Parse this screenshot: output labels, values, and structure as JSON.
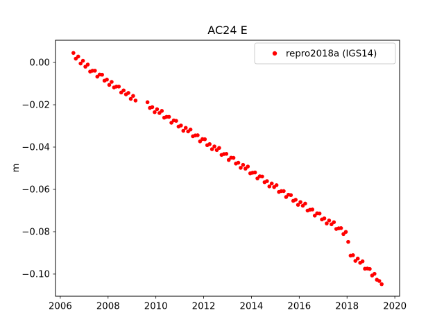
{
  "figure": {
    "background": "#ffffff"
  },
  "chart_data": {
    "type": "scatter",
    "title": "AC24 E",
    "xlabel": "",
    "ylabel": "m",
    "grid": false,
    "xlim": [
      2005.8,
      2020.2
    ],
    "ylim": [
      -0.1105,
      0.0105
    ],
    "xticks": [
      2006,
      2008,
      2010,
      2012,
      2014,
      2016,
      2018,
      2020
    ],
    "yticks": [
      0.0,
      -0.02,
      -0.04,
      -0.06,
      -0.08,
      -0.1
    ],
    "ytick_labels": [
      "0.00",
      "−0.02",
      "−0.04",
      "−0.06",
      "−0.08",
      "−0.10"
    ],
    "legend": {
      "position": "upper right",
      "entries": [
        {
          "label": "repro2018a (IGS14)",
          "color": "#ff0000",
          "marker": "circle"
        }
      ]
    },
    "series": [
      {
        "name": "repro2018a (IGS14)",
        "color": "#ff0000",
        "marker": "dot",
        "marker_size": 2.8,
        "x": [
          2006.55,
          2006.65,
          2006.75,
          2006.85,
          2006.95,
          2007.05,
          2007.15,
          2007.25,
          2007.35,
          2007.45,
          2007.55,
          2007.65,
          2007.75,
          2007.85,
          2007.95,
          2008.05,
          2008.15,
          2008.25,
          2008.35,
          2008.45,
          2008.55,
          2008.65,
          2008.75,
          2008.85,
          2008.95,
          2009.05,
          2009.15,
          2009.65,
          2009.75,
          2009.85,
          2009.95,
          2010.05,
          2010.15,
          2010.25,
          2010.35,
          2010.45,
          2010.55,
          2010.65,
          2010.75,
          2010.85,
          2010.95,
          2011.05,
          2011.15,
          2011.25,
          2011.35,
          2011.45,
          2011.55,
          2011.65,
          2011.75,
          2011.85,
          2011.95,
          2012.05,
          2012.15,
          2012.25,
          2012.35,
          2012.45,
          2012.55,
          2012.65,
          2012.75,
          2012.85,
          2012.95,
          2013.05,
          2013.15,
          2013.25,
          2013.35,
          2013.45,
          2013.55,
          2013.65,
          2013.75,
          2013.85,
          2013.95,
          2014.05,
          2014.15,
          2014.25,
          2014.35,
          2014.45,
          2014.55,
          2014.65,
          2014.75,
          2014.85,
          2014.95,
          2015.05,
          2015.15,
          2015.25,
          2015.35,
          2015.45,
          2015.55,
          2015.65,
          2015.75,
          2015.85,
          2015.95,
          2016.05,
          2016.15,
          2016.25,
          2016.35,
          2016.45,
          2016.55,
          2016.65,
          2016.75,
          2016.85,
          2016.95,
          2017.05,
          2017.15,
          2017.25,
          2017.35,
          2017.45,
          2017.55,
          2017.65,
          2017.75,
          2017.85,
          2017.95,
          2018.05,
          2018.15,
          2018.25,
          2018.35,
          2018.45,
          2018.55,
          2018.65,
          2018.75,
          2018.85,
          2018.95,
          2019.05,
          2019.15,
          2019.25,
          2019.35,
          2019.45
        ],
        "y": [
          0.0045,
          0.0018,
          0.0028,
          -0.0005,
          0.0008,
          -0.002,
          -0.001,
          -0.0043,
          -0.0039,
          -0.0039,
          -0.0067,
          -0.0057,
          -0.0058,
          -0.0086,
          -0.0081,
          -0.0106,
          -0.0092,
          -0.0118,
          -0.0114,
          -0.0114,
          -0.0142,
          -0.0132,
          -0.0151,
          -0.0144,
          -0.0172,
          -0.0158,
          -0.018,
          -0.0188,
          -0.0215,
          -0.0211,
          -0.0235,
          -0.0221,
          -0.0239,
          -0.0229,
          -0.0261,
          -0.0257,
          -0.0257,
          -0.0285,
          -0.0274,
          -0.0276,
          -0.0303,
          -0.0298,
          -0.0323,
          -0.0309,
          -0.0326,
          -0.0317,
          -0.0349,
          -0.0345,
          -0.0344,
          -0.0373,
          -0.0362,
          -0.0363,
          -0.0391,
          -0.0386,
          -0.041,
          -0.0397,
          -0.0414,
          -0.0404,
          -0.0437,
          -0.0433,
          -0.0432,
          -0.0461,
          -0.045,
          -0.0451,
          -0.0478,
          -0.0474,
          -0.0498,
          -0.0484,
          -0.0502,
          -0.0492,
          -0.0524,
          -0.0521,
          -0.052,
          -0.0548,
          -0.0538,
          -0.0539,
          -0.0566,
          -0.0561,
          -0.0586,
          -0.0572,
          -0.0589,
          -0.058,
          -0.0612,
          -0.0608,
          -0.0608,
          -0.0636,
          -0.0625,
          -0.0627,
          -0.0654,
          -0.0649,
          -0.0673,
          -0.066,
          -0.0677,
          -0.0667,
          -0.07,
          -0.0696,
          -0.0695,
          -0.0724,
          -0.0713,
          -0.0714,
          -0.0742,
          -0.0737,
          -0.0761,
          -0.0747,
          -0.0765,
          -0.0755,
          -0.0787,
          -0.0784,
          -0.0783,
          -0.0811,
          -0.0801,
          -0.0848,
          -0.0913,
          -0.0911,
          -0.0938,
          -0.0927,
          -0.0947,
          -0.094,
          -0.0975,
          -0.0974,
          -0.0976,
          -0.1007,
          -0.0999,
          -0.1027,
          -0.1033,
          -0.1048
        ]
      }
    ]
  }
}
